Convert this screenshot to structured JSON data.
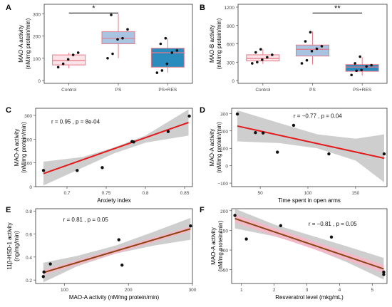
{
  "colors": {
    "control": "#e67a8a",
    "control_fill": "#fbe3e8",
    "ps": "#e67a8a",
    "ps_fill": "#a9c4e0",
    "res": "#e67a8a",
    "res_fill": "#2b8cbe",
    "reg_line": "#e31a1c",
    "band": "#bdbdbd",
    "pink_band": "#f9b5c8",
    "dark_line": "#8b4513",
    "panel_bg": "#ebebeb"
  },
  "chart_data": [
    {
      "panel": "A",
      "type": "box",
      "categories": [
        "Control",
        "PS",
        "PS+RES"
      ],
      "ylabel": [
        "MAO-A activity",
        "(nM/mg protein/min)"
      ],
      "ylim": [
        0,
        330
      ],
      "yticks": [
        0,
        100,
        200,
        300
      ],
      "boxes": [
        {
          "q1": 70,
          "median": 90,
          "q3": 115,
          "min": 55,
          "max": 125
        },
        {
          "q1": 165,
          "median": 190,
          "q3": 220,
          "min": 100,
          "max": 300
        },
        {
          "q1": 60,
          "median": 125,
          "q3": 145,
          "min": 35,
          "max": 190
        }
      ],
      "points": [
        [
          60,
          75,
          95,
          115,
          125
        ],
        [
          100,
          120,
          185,
          190,
          230,
          295
        ],
        [
          35,
          45,
          75,
          125,
          135,
          165,
          190
        ]
      ],
      "significance": {
        "from": 0,
        "to": 1,
        "label": "*"
      }
    },
    {
      "panel": "B",
      "type": "box",
      "categories": [
        "Control",
        "PS",
        "PS+RES"
      ],
      "ylabel": [
        "MAO-B activity",
        "(nM/mg protein/min)"
      ],
      "ylim": [
        0,
        1200
      ],
      "yticks": [
        0,
        300,
        600,
        900,
        1200
      ],
      "boxes": [
        {
          "q1": 320,
          "median": 360,
          "q3": 420,
          "min": 270,
          "max": 510
        },
        {
          "q1": 400,
          "median": 510,
          "q3": 580,
          "min": 260,
          "max": 800
        },
        {
          "q1": 150,
          "median": 220,
          "q3": 260,
          "min": 80,
          "max": 380
        }
      ],
      "points": [
        [
          280,
          300,
          340,
          380,
          420,
          460,
          510
        ],
        [
          280,
          330,
          480,
          520,
          560,
          640,
          790
        ],
        [
          90,
          160,
          170,
          230,
          250,
          280,
          390
        ]
      ],
      "significance": {
        "from": 1,
        "to": 2,
        "label": "**"
      }
    },
    {
      "panel": "C",
      "type": "scatter",
      "xlabel": "Anxiety index",
      "ylabel": [
        "MAO-A activity",
        "(nM/mg protein/min)"
      ],
      "xlim": [
        0.66,
        0.86
      ],
      "ylim": [
        0,
        330
      ],
      "xticks": [
        0.7,
        0.75,
        0.8,
        0.85
      ],
      "yticks": [
        0,
        100,
        200,
        300
      ],
      "points": [
        [
          0.67,
          68
        ],
        [
          0.713,
          68
        ],
        [
          0.745,
          80
        ],
        [
          0.783,
          190
        ],
        [
          0.785,
          188
        ],
        [
          0.829,
          232
        ],
        [
          0.856,
          297
        ]
      ],
      "fit": [
        [
          0.67,
          55
        ],
        [
          0.855,
          270
        ]
      ],
      "band_low": [
        [
          0.67,
          5
        ],
        [
          0.72,
          80
        ],
        [
          0.76,
          140
        ],
        [
          0.8,
          185
        ],
        [
          0.855,
          215
        ]
      ],
      "band_high": [
        [
          0.67,
          105
        ],
        [
          0.72,
          125
        ],
        [
          0.76,
          165
        ],
        [
          0.8,
          215
        ],
        [
          0.855,
          325
        ]
      ],
      "annotation": "r = 0.95 ,  p = 8e-04",
      "annotation_pos": [
        0.68,
        265
      ],
      "band_style": "gray",
      "line_style": "red"
    },
    {
      "panel": "D",
      "type": "scatter",
      "xlabel": "Time spent in open arms",
      "ylabel": [
        "MAO-A activity",
        "(nM/mg protein/min)"
      ],
      "xlim": [
        20,
        183
      ],
      "ylim": [
        -120,
        330
      ],
      "xticks": [
        50,
        100,
        150
      ],
      "yticks": [
        -100,
        0,
        100,
        200,
        300
      ],
      "points": [
        [
          26,
          297
        ],
        [
          45,
          190
        ],
        [
          53,
          188
        ],
        [
          68,
          78
        ],
        [
          85,
          232
        ],
        [
          122,
          68
        ],
        [
          180,
          68
        ]
      ],
      "fit": [
        [
          26,
          228
        ],
        [
          180,
          43
        ]
      ],
      "band_low": [
        [
          26,
          140
        ],
        [
          70,
          130
        ],
        [
          110,
          100
        ],
        [
          150,
          30
        ],
        [
          180,
          -95
        ]
      ],
      "band_high": [
        [
          26,
          318
        ],
        [
          70,
          245
        ],
        [
          110,
          180
        ],
        [
          150,
          155
        ],
        [
          180,
          180
        ]
      ],
      "annotation": "r = −0.77 ,  p = 0.04",
      "annotation_pos": [
        85,
        275
      ],
      "band_style": "gray",
      "line_style": "red"
    },
    {
      "panel": "E",
      "type": "scatter",
      "xlabel": "MAO-A activity (nM/mg protein/min)",
      "ylabel": [
        "11β-HSD-1 activity",
        "(ng/mg/min)"
      ],
      "xlim": [
        55,
        300
      ],
      "ylim": [
        0.17,
        0.82
      ],
      "xticks": [
        100,
        200,
        300
      ],
      "yticks": [
        0.2,
        0.4,
        0.6,
        0.8
      ],
      "ytick_labels": [
        "0.2",
        "0.4",
        "0.6",
        "0.8"
      ],
      "points": [
        [
          67,
          0.23
        ],
        [
          68,
          0.27
        ],
        [
          78,
          0.34
        ],
        [
          185,
          0.55
        ],
        [
          190,
          0.33
        ],
        [
          297,
          0.67
        ]
      ],
      "fit": [
        [
          67,
          0.265
        ],
        [
          297,
          0.645
        ]
      ],
      "band_low": [
        [
          67,
          0.18
        ],
        [
          120,
          0.32
        ],
        [
          180,
          0.43
        ],
        [
          240,
          0.5
        ],
        [
          297,
          0.55
        ]
      ],
      "band_high": [
        [
          67,
          0.35
        ],
        [
          120,
          0.41
        ],
        [
          180,
          0.5
        ],
        [
          240,
          0.62
        ],
        [
          297,
          0.74
        ]
      ],
      "pink_low": [
        [
          67,
          0.245
        ],
        [
          297,
          0.625
        ]
      ],
      "pink_high": [
        [
          67,
          0.285
        ],
        [
          297,
          0.665
        ]
      ],
      "annotation": "r = 0.81 ,  p = 0.05",
      "annotation_pos": [
        98,
        0.71
      ],
      "band_style": "gray",
      "line_style": "dark"
    },
    {
      "panel": "F",
      "type": "scatter",
      "xlabel": "Resveratrol level (mkg/mL)",
      "ylabel": [
        "MAO-A activity",
        "(nM/mg protein/min)"
      ],
      "xlim": [
        0.7,
        5.45
      ],
      "ylim": [
        15,
        205
      ],
      "xticks": [
        1,
        2,
        3,
        4,
        5
      ],
      "yticks": [
        50,
        100,
        150,
        200
      ],
      "points": [
        [
          0.8,
          188
        ],
        [
          1.15,
          128
        ],
        [
          2.2,
          162
        ],
        [
          3.75,
          133
        ],
        [
          5.35,
          44
        ],
        [
          5.35,
          38
        ]
      ],
      "fit": [
        [
          0.8,
          180
        ],
        [
          5.35,
          52
        ]
      ],
      "band_low": [
        [
          0.8,
          155
        ],
        [
          2,
          135
        ],
        [
          3,
          110
        ],
        [
          4.2,
          70
        ],
        [
          5.35,
          25
        ]
      ],
      "band_high": [
        [
          0.8,
          205
        ],
        [
          2,
          165
        ],
        [
          3,
          140
        ],
        [
          4.2,
          110
        ],
        [
          5.35,
          80
        ]
      ],
      "pink_low": [
        [
          0.8,
          170
        ],
        [
          5.35,
          42
        ]
      ],
      "pink_high": [
        [
          0.8,
          190
        ],
        [
          5.35,
          62
        ]
      ],
      "annotation": "r = −0.81 ,  p = 0.05",
      "annotation_pos": [
        3.05,
        162
      ],
      "band_style": "gray",
      "line_style": "dark"
    }
  ]
}
